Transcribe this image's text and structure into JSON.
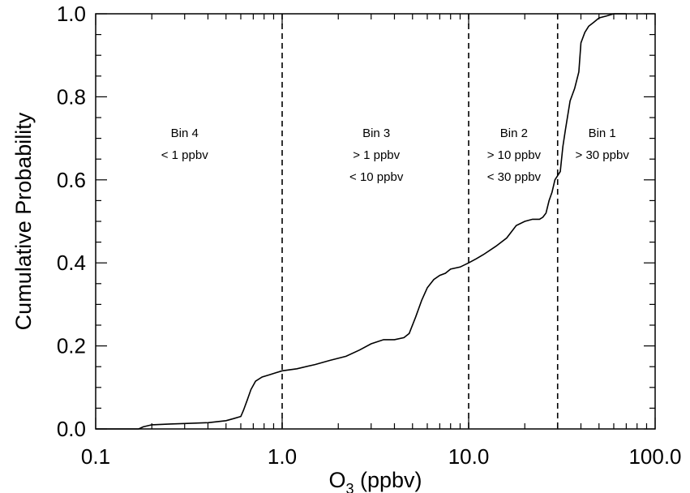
{
  "chart_data": {
    "type": "line",
    "xlabel": "O",
    "xlabel_subscript": "3",
    "xlabel_suffix": " (ppbv)",
    "ylabel": "Cumulative Probability",
    "xscale": "log",
    "xlim": [
      0.1,
      100.0
    ],
    "ylim": [
      0.0,
      1.0
    ],
    "grid": false,
    "x_tick_values": [
      0.1,
      1.0,
      10.0,
      100.0
    ],
    "x_tick_labels": [
      "0.1",
      "1.0",
      "10.0",
      "100.0"
    ],
    "y_tick_values": [
      0.0,
      0.2,
      0.4,
      0.6,
      0.8,
      1.0
    ],
    "y_tick_labels": [
      "0.0",
      "0.2",
      "0.4",
      "0.6",
      "0.8",
      "1.0"
    ],
    "thresholds": [
      1.0,
      10.0,
      30.0
    ],
    "regions": [
      {
        "x": 0.3,
        "lines": [
          "Bin 4",
          "< 1 ppbv"
        ]
      },
      {
        "x": 3.2,
        "lines": [
          "Bin 3",
          "> 1 ppbv",
          "< 10 ppbv"
        ]
      },
      {
        "x": 17.5,
        "lines": [
          "Bin 2",
          "> 10 ppbv",
          "< 30 ppbv"
        ]
      },
      {
        "x": 52,
        "lines": [
          "Bin 1",
          "> 30 ppbv"
        ]
      }
    ],
    "series": [
      {
        "x": [
          0.1,
          0.17,
          0.18,
          0.2,
          0.25,
          0.3,
          0.4,
          0.5,
          0.55,
          0.6,
          0.62,
          0.65,
          0.68,
          0.72,
          0.78,
          0.85,
          0.92,
          1.0,
          1.2,
          1.5,
          1.8,
          2.2,
          2.6,
          3.0,
          3.5,
          4.0,
          4.5,
          4.8,
          5.2,
          5.6,
          6.0,
          6.5,
          7.0,
          7.5,
          8.0,
          9.0,
          10.0,
          11.0,
          12.0,
          14.0,
          16.0,
          18.0,
          20.0,
          22.0,
          24.0,
          25.0,
          26.0,
          27.0,
          28.0,
          29.0,
          30.0,
          31.0,
          32.0,
          33.0,
          35.0,
          37.0,
          39.0,
          40.0,
          42.0,
          44.0,
          47.0,
          50.0,
          55.0,
          60.0,
          70.0
        ],
        "y": [
          0.0,
          0.0,
          0.005,
          0.01,
          0.012,
          0.013,
          0.015,
          0.02,
          0.025,
          0.03,
          0.045,
          0.07,
          0.095,
          0.115,
          0.125,
          0.13,
          0.135,
          0.14,
          0.145,
          0.155,
          0.165,
          0.175,
          0.19,
          0.205,
          0.215,
          0.215,
          0.22,
          0.23,
          0.27,
          0.31,
          0.34,
          0.36,
          0.37,
          0.375,
          0.385,
          0.39,
          0.4,
          0.41,
          0.42,
          0.44,
          0.46,
          0.49,
          0.5,
          0.505,
          0.505,
          0.51,
          0.52,
          0.55,
          0.57,
          0.6,
          0.61,
          0.62,
          0.68,
          0.72,
          0.79,
          0.82,
          0.86,
          0.93,
          0.955,
          0.97,
          0.98,
          0.99,
          0.995,
          1.0,
          1.0
        ]
      }
    ]
  }
}
